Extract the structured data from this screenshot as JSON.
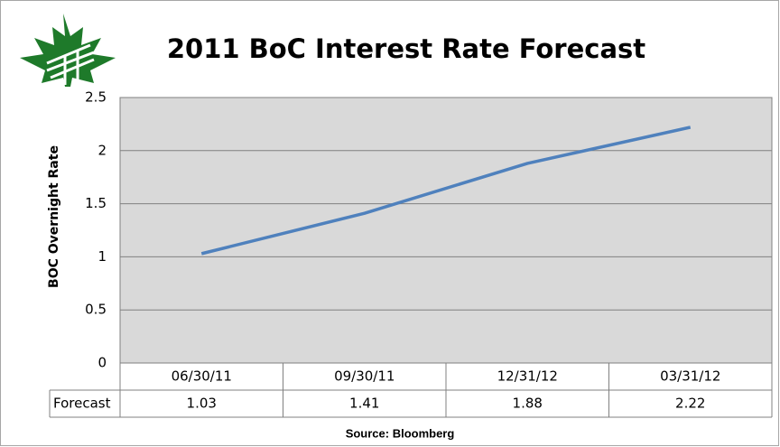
{
  "chart_data": {
    "type": "line",
    "title": "2011 BoC Interest Rate Forecast",
    "y_label": "BOC Overnight Rate",
    "source": "Source: Bloomberg",
    "categories": [
      "06/30/11",
      "09/30/11",
      "12/31/12",
      "03/31/12"
    ],
    "series": [
      {
        "name": "Forecast",
        "color": "#4f81bd",
        "values": [
          1.03,
          1.41,
          1.88,
          2.22
        ]
      }
    ],
    "ylim": [
      0,
      2.5
    ],
    "yticks": [
      0,
      0.5,
      1,
      1.5,
      2,
      2.5
    ],
    "grid": true
  }
}
